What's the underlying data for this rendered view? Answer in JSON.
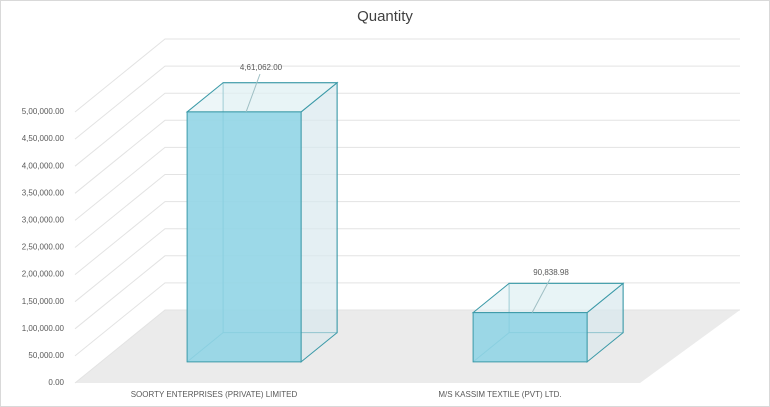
{
  "chart_data": {
    "type": "bar3d",
    "title": "Quantity",
    "categories": [
      "SOORTY ENTERPRISES (PRIVATE) LIMITED",
      "M/S KASSIM TEXTILE (PVT) LTD."
    ],
    "values": [
      461062,
      90838.98
    ],
    "value_labels": [
      "4,61,062.00",
      "90,838.98"
    ],
    "color": "#92d5e5",
    "ylim": [
      0,
      500000
    ],
    "yticks": [
      {
        "value": 0,
        "label": "0.00"
      },
      {
        "value": 50000,
        "label": "50,000.00"
      },
      {
        "value": 100000,
        "label": "1,00,000.00"
      },
      {
        "value": 150000,
        "label": "1,50,000.00"
      },
      {
        "value": 200000,
        "label": "2,00,000.00"
      },
      {
        "value": 250000,
        "label": "2,50,000.00"
      },
      {
        "value": 300000,
        "label": "3,00,000.00"
      },
      {
        "value": 350000,
        "label": "3,50,000.00"
      },
      {
        "value": 400000,
        "label": "4,00,000.00"
      },
      {
        "value": 450000,
        "label": "4,50,000.00"
      },
      {
        "value": 500000,
        "label": "5,00,000.00"
      }
    ],
    "grid": true
  }
}
